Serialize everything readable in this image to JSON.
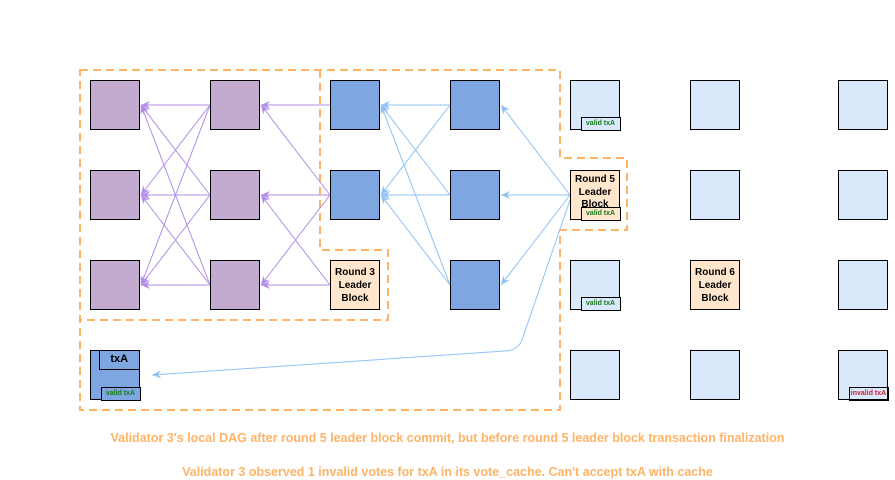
{
  "colors": {
    "validator_round_1_2": "#c3abd0",
    "rounds_3_4": "#7ea6e0",
    "uncommitted": "#dae8fc",
    "leader": "#ffe6cc",
    "outline": "#ffb366",
    "valid": "#1a7a1a",
    "invalid": "#cc1f2f"
  },
  "leaders": {
    "round3": "Round 3 Leader Block",
    "round5": "Round 5 Leader Block",
    "round6": "Round 6 Leader Block"
  },
  "tx_block": {
    "title": "txA",
    "valid_label": "valid txA"
  },
  "tags": {
    "valid": "valid txA",
    "invalid": "invalid txA"
  },
  "captions": {
    "line1": "Validator 3's local DAG after round 5 leader block commit, but before round 5 leader block transaction finalization",
    "line2": "Validator 3 observed 1 invalid votes for txA in its vote_cache. Can't accept txA with cache"
  }
}
